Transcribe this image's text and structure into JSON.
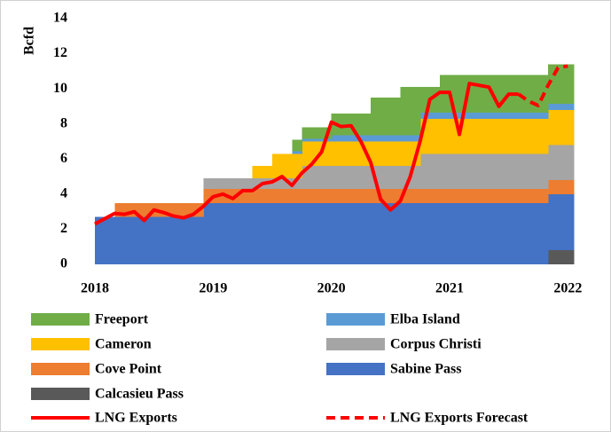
{
  "chart_data": {
    "type": "area",
    "step": true,
    "stacked": true,
    "y_label": "Bcfd",
    "xlim": [
      2018,
      2022.05
    ],
    "xticks": [
      2018,
      2019,
      2020,
      2021,
      2022
    ],
    "ylim": [
      0,
      14
    ],
    "yticks": [
      0,
      2,
      4,
      6,
      8,
      10,
      12,
      14
    ],
    "grid": false,
    "legend": "bottom",
    "x": [
      2018,
      2018.083,
      2018.167,
      2018.25,
      2018.333,
      2018.417,
      2018.5,
      2018.583,
      2018.667,
      2018.75,
      2018.833,
      2018.917,
      2019,
      2019.083,
      2019.167,
      2019.25,
      2019.333,
      2019.417,
      2019.5,
      2019.583,
      2019.667,
      2019.75,
      2019.833,
      2019.917,
      2020,
      2020.083,
      2020.167,
      2020.25,
      2020.333,
      2020.417,
      2020.5,
      2020.583,
      2020.667,
      2020.75,
      2020.833,
      2020.917,
      2021,
      2021.083,
      2021.167,
      2021.25,
      2021.333,
      2021.417,
      2021.5,
      2021.583,
      2021.667,
      2021.75,
      2021.833,
      2021.917,
      2022
    ],
    "series": [
      {
        "name": "Calcasieu Pass",
        "color": "#595959",
        "values": [
          0,
          0,
          0,
          0,
          0,
          0,
          0,
          0,
          0,
          0,
          0,
          0,
          0,
          0,
          0,
          0,
          0,
          0,
          0,
          0,
          0,
          0,
          0,
          0,
          0,
          0,
          0,
          0,
          0,
          0,
          0,
          0,
          0,
          0,
          0,
          0,
          0,
          0,
          0,
          0,
          0,
          0,
          0,
          0,
          0,
          0,
          0.8,
          0.8,
          0.8
        ]
      },
      {
        "name": "Sabine Pass",
        "color": "#4472c4",
        "values": [
          2.7,
          2.7,
          2.7,
          2.7,
          2.7,
          2.7,
          2.7,
          2.7,
          2.7,
          2.7,
          2.7,
          3.5,
          3.5,
          3.5,
          3.5,
          3.5,
          3.5,
          3.5,
          3.5,
          3.5,
          3.5,
          3.5,
          3.5,
          3.5,
          3.5,
          3.5,
          3.5,
          3.5,
          3.5,
          3.5,
          3.5,
          3.5,
          3.5,
          3.5,
          3.5,
          3.5,
          3.5,
          3.5,
          3.5,
          3.5,
          3.5,
          3.5,
          3.5,
          3.5,
          3.5,
          3.5,
          3.2,
          3.2,
          3.2
        ]
      },
      {
        "name": "Cove Point",
        "color": "#ed7d31",
        "values": [
          0,
          0,
          0.8,
          0.8,
          0.8,
          0.8,
          0.8,
          0.8,
          0.8,
          0.8,
          0.8,
          0.8,
          0.8,
          0.8,
          0.8,
          0.8,
          0.8,
          0.8,
          0.8,
          0.8,
          0.8,
          0.8,
          0.8,
          0.8,
          0.8,
          0.8,
          0.8,
          0.8,
          0.8,
          0.8,
          0.8,
          0.8,
          0.8,
          0.8,
          0.8,
          0.8,
          0.8,
          0.8,
          0.8,
          0.8,
          0.8,
          0.8,
          0.8,
          0.8,
          0.8,
          0.8,
          0.8,
          0.8,
          0.8
        ]
      },
      {
        "name": "Corpus Christi",
        "color": "#a5a5a5",
        "values": [
          0,
          0,
          0,
          0,
          0,
          0,
          0,
          0,
          0,
          0,
          0,
          0.6,
          0.6,
          0.6,
          0.6,
          0.6,
          0.6,
          0.6,
          0.6,
          0.6,
          0.6,
          1.3,
          1.3,
          1.3,
          1.3,
          1.3,
          1.3,
          1.3,
          1.3,
          1.3,
          1.3,
          1.3,
          1.3,
          2.0,
          2.0,
          2.0,
          2.0,
          2.0,
          2.0,
          2.0,
          2.0,
          2.0,
          2.0,
          2.0,
          2.0,
          2.0,
          2.0,
          2.0,
          2.0
        ]
      },
      {
        "name": "Cameron",
        "color": "#ffc000",
        "values": [
          0,
          0,
          0,
          0,
          0,
          0,
          0,
          0,
          0,
          0,
          0,
          0,
          0,
          0,
          0,
          0,
          0.7,
          0.7,
          1.4,
          1.4,
          1.4,
          1.4,
          1.4,
          1.4,
          1.4,
          1.4,
          1.4,
          1.4,
          1.4,
          1.4,
          1.4,
          1.4,
          1.4,
          2.0,
          2.0,
          2.0,
          2.0,
          2.0,
          2.0,
          2.0,
          2.0,
          2.0,
          2.0,
          2.0,
          2.0,
          2.0,
          2.0,
          2.0,
          2.0
        ]
      },
      {
        "name": "Elba Island",
        "color": "#5b9bd5",
        "values": [
          0,
          0,
          0,
          0,
          0,
          0,
          0,
          0,
          0,
          0,
          0,
          0,
          0,
          0,
          0,
          0,
          0,
          0,
          0,
          0,
          0.15,
          0.15,
          0.15,
          0.15,
          0.35,
          0.35,
          0.35,
          0.35,
          0.35,
          0.35,
          0.35,
          0.35,
          0.35,
          0.35,
          0.35,
          0.35,
          0.35,
          0.35,
          0.35,
          0.35,
          0.35,
          0.35,
          0.35,
          0.35,
          0.35,
          0.35,
          0.35,
          0.35,
          0.35
        ]
      },
      {
        "name": "Freeport",
        "color": "#70ad47",
        "values": [
          0,
          0,
          0,
          0,
          0,
          0,
          0,
          0,
          0,
          0,
          0,
          0,
          0,
          0,
          0,
          0,
          0,
          0,
          0,
          0,
          0.65,
          0.65,
          0.65,
          0.65,
          1.25,
          1.25,
          1.25,
          1.25,
          2.15,
          2.15,
          2.15,
          2.75,
          2.75,
          1.45,
          1.45,
          2.15,
          2.15,
          2.15,
          2.15,
          2.15,
          2.15,
          2.15,
          2.15,
          2.15,
          2.15,
          2.15,
          2.25,
          2.25,
          2.25
        ]
      },
      {
        "name": "LNG Exports",
        "type": "line",
        "linestyle": "solid",
        "color": "#ff0000",
        "values": [
          2.3,
          2.6,
          2.9,
          2.85,
          3.0,
          2.5,
          3.1,
          2.95,
          2.75,
          2.65,
          2.85,
          3.3,
          3.85,
          4.0,
          3.75,
          4.2,
          4.2,
          4.6,
          4.7,
          5.0,
          4.5,
          5.2,
          5.7,
          6.4,
          8.1,
          7.85,
          7.9,
          7.0,
          5.8,
          3.7,
          3.1,
          3.6,
          5.0,
          7.0,
          9.4,
          9.8,
          9.8,
          7.4,
          10.3,
          10.2,
          10.1,
          9.0,
          9.7,
          9.7,
          null,
          null,
          null,
          null,
          null
        ]
      },
      {
        "name": "LNG Exports Forecast",
        "type": "line",
        "linestyle": "dashed",
        "color": "#ff0000",
        "values": [
          null,
          null,
          null,
          null,
          null,
          null,
          null,
          null,
          null,
          null,
          null,
          null,
          null,
          null,
          null,
          null,
          null,
          null,
          null,
          null,
          null,
          null,
          null,
          null,
          null,
          null,
          null,
          null,
          null,
          null,
          null,
          null,
          null,
          null,
          null,
          null,
          null,
          null,
          null,
          null,
          null,
          null,
          null,
          9.7,
          9.3,
          9.05,
          10.2,
          11.2,
          11.3
        ]
      }
    ]
  }
}
